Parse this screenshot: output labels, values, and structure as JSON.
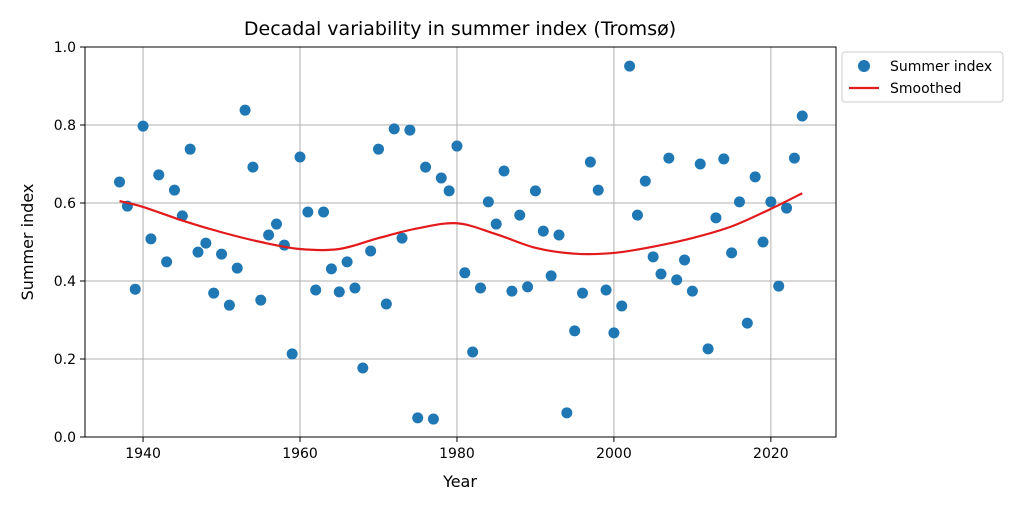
{
  "chart_data": {
    "type": "scatter",
    "title": "Decadal variability in summer index (Tromsø)",
    "xlabel": "Year",
    "ylabel": "Summer index",
    "xlim": [
      1932.6,
      2028.3
    ],
    "ylim": [
      0.0,
      1.0
    ],
    "xticks": [
      1940,
      1960,
      1980,
      2000,
      2020
    ],
    "yticks": [
      "0.0",
      "0.2",
      "0.4",
      "0.6",
      "0.8",
      "1.0"
    ],
    "grid": true,
    "legend_placement": "outside-top-right",
    "series": [
      {
        "name": "Summer index",
        "kind": "scatter",
        "color": "#1f77b4",
        "x": [
          1937,
          1938,
          1939,
          1940,
          1941,
          1942,
          1943,
          1944,
          1945,
          1946,
          1947,
          1948,
          1949,
          1950,
          1951,
          1952,
          1953,
          1954,
          1955,
          1956,
          1957,
          1958,
          1959,
          1960,
          1961,
          1962,
          1963,
          1964,
          1965,
          1966,
          1967,
          1968,
          1969,
          1970,
          1971,
          1972,
          1973,
          1974,
          1975,
          1976,
          1977,
          1978,
          1979,
          1980,
          1981,
          1982,
          1983,
          1984,
          1985,
          1986,
          1987,
          1988,
          1989,
          1990,
          1991,
          1992,
          1993,
          1994,
          1995,
          1996,
          1997,
          1998,
          1999,
          2000,
          2001,
          2002,
          2003,
          2004,
          2005,
          2006,
          2007,
          2008,
          2009,
          2010,
          2011,
          2012,
          2013,
          2014,
          2015,
          2016,
          2017,
          2018,
          2019,
          2020,
          2021,
          2022,
          2023,
          2024
        ],
        "y": [
          0.654,
          0.592,
          0.379,
          0.797,
          0.508,
          0.672,
          0.449,
          0.633,
          0.567,
          0.738,
          0.474,
          0.497,
          0.369,
          0.469,
          0.338,
          0.433,
          0.838,
          0.692,
          0.351,
          0.518,
          0.546,
          0.492,
          0.213,
          0.718,
          0.577,
          0.377,
          0.577,
          0.431,
          0.372,
          0.449,
          0.382,
          0.177,
          0.477,
          0.738,
          0.341,
          0.79,
          0.51,
          0.787,
          0.049,
          0.692,
          0.046,
          0.664,
          0.631,
          0.746,
          0.421,
          0.218,
          0.382,
          0.603,
          0.546,
          0.682,
          0.374,
          0.569,
          0.385,
          0.631,
          0.528,
          0.413,
          0.518,
          0.062,
          0.272,
          0.369,
          0.705,
          0.633,
          0.377,
          0.267,
          0.336,
          0.951,
          0.569,
          0.656,
          0.462,
          0.418,
          0.715,
          0.403,
          0.454,
          0.374,
          0.7,
          0.226,
          0.562,
          0.713,
          0.472,
          0.603,
          0.292,
          0.667,
          0.5,
          0.603,
          0.387,
          0.587,
          0.715,
          0.823
        ]
      },
      {
        "name": "Smoothed",
        "kind": "line",
        "color": "#e31a1c",
        "x": [
          1937,
          1940,
          1945,
          1950,
          1955,
          1960,
          1965,
          1970,
          1975,
          1980,
          1985,
          1990,
          1995,
          2000,
          2005,
          2010,
          2015,
          2020,
          2024
        ],
        "y": [
          0.605,
          0.59,
          0.555,
          0.525,
          0.5,
          0.482,
          0.482,
          0.51,
          0.535,
          0.548,
          0.52,
          0.485,
          0.47,
          0.472,
          0.488,
          0.51,
          0.54,
          0.585,
          0.625
        ]
      }
    ]
  }
}
